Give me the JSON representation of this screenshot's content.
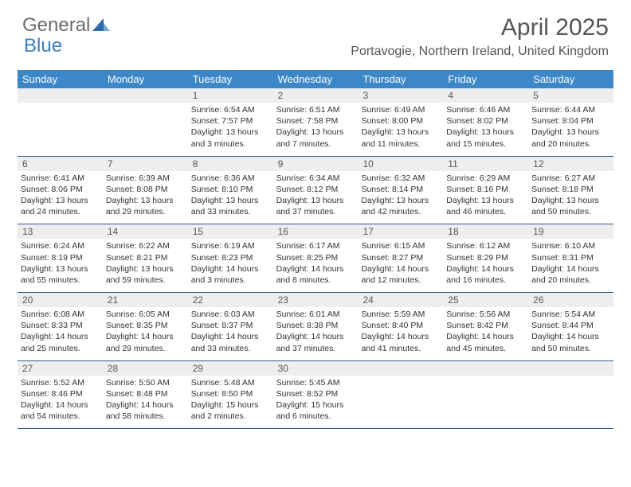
{
  "header": {
    "logo_text_1": "General",
    "logo_text_2": "Blue",
    "month_title": "April 2025",
    "location": "Portavogie, Northern Ireland, United Kingdom"
  },
  "days_of_week": [
    "Sunday",
    "Monday",
    "Tuesday",
    "Wednesday",
    "Thursday",
    "Friday",
    "Saturday"
  ],
  "colors": {
    "header_bar": "#3b87c8",
    "daynum_bg": "#eeeeee",
    "row_border": "#2f5f8f",
    "text": "#333333",
    "logo_gray": "#6b6b6b",
    "logo_blue": "#3b7fc4"
  },
  "weeks": [
    [
      {
        "n": "",
        "sunrise": "",
        "sunset": "",
        "daylight": ""
      },
      {
        "n": "",
        "sunrise": "",
        "sunset": "",
        "daylight": ""
      },
      {
        "n": "1",
        "sunrise": "Sunrise: 6:54 AM",
        "sunset": "Sunset: 7:57 PM",
        "daylight": "Daylight: 13 hours and 3 minutes."
      },
      {
        "n": "2",
        "sunrise": "Sunrise: 6:51 AM",
        "sunset": "Sunset: 7:58 PM",
        "daylight": "Daylight: 13 hours and 7 minutes."
      },
      {
        "n": "3",
        "sunrise": "Sunrise: 6:49 AM",
        "sunset": "Sunset: 8:00 PM",
        "daylight": "Daylight: 13 hours and 11 minutes."
      },
      {
        "n": "4",
        "sunrise": "Sunrise: 6:46 AM",
        "sunset": "Sunset: 8:02 PM",
        "daylight": "Daylight: 13 hours and 15 minutes."
      },
      {
        "n": "5",
        "sunrise": "Sunrise: 6:44 AM",
        "sunset": "Sunset: 8:04 PM",
        "daylight": "Daylight: 13 hours and 20 minutes."
      }
    ],
    [
      {
        "n": "6",
        "sunrise": "Sunrise: 6:41 AM",
        "sunset": "Sunset: 8:06 PM",
        "daylight": "Daylight: 13 hours and 24 minutes."
      },
      {
        "n": "7",
        "sunrise": "Sunrise: 6:39 AM",
        "sunset": "Sunset: 8:08 PM",
        "daylight": "Daylight: 13 hours and 29 minutes."
      },
      {
        "n": "8",
        "sunrise": "Sunrise: 6:36 AM",
        "sunset": "Sunset: 8:10 PM",
        "daylight": "Daylight: 13 hours and 33 minutes."
      },
      {
        "n": "9",
        "sunrise": "Sunrise: 6:34 AM",
        "sunset": "Sunset: 8:12 PM",
        "daylight": "Daylight: 13 hours and 37 minutes."
      },
      {
        "n": "10",
        "sunrise": "Sunrise: 6:32 AM",
        "sunset": "Sunset: 8:14 PM",
        "daylight": "Daylight: 13 hours and 42 minutes."
      },
      {
        "n": "11",
        "sunrise": "Sunrise: 6:29 AM",
        "sunset": "Sunset: 8:16 PM",
        "daylight": "Daylight: 13 hours and 46 minutes."
      },
      {
        "n": "12",
        "sunrise": "Sunrise: 6:27 AM",
        "sunset": "Sunset: 8:18 PM",
        "daylight": "Daylight: 13 hours and 50 minutes."
      }
    ],
    [
      {
        "n": "13",
        "sunrise": "Sunrise: 6:24 AM",
        "sunset": "Sunset: 8:19 PM",
        "daylight": "Daylight: 13 hours and 55 minutes."
      },
      {
        "n": "14",
        "sunrise": "Sunrise: 6:22 AM",
        "sunset": "Sunset: 8:21 PM",
        "daylight": "Daylight: 13 hours and 59 minutes."
      },
      {
        "n": "15",
        "sunrise": "Sunrise: 6:19 AM",
        "sunset": "Sunset: 8:23 PM",
        "daylight": "Daylight: 14 hours and 3 minutes."
      },
      {
        "n": "16",
        "sunrise": "Sunrise: 6:17 AM",
        "sunset": "Sunset: 8:25 PM",
        "daylight": "Daylight: 14 hours and 8 minutes."
      },
      {
        "n": "17",
        "sunrise": "Sunrise: 6:15 AM",
        "sunset": "Sunset: 8:27 PM",
        "daylight": "Daylight: 14 hours and 12 minutes."
      },
      {
        "n": "18",
        "sunrise": "Sunrise: 6:12 AM",
        "sunset": "Sunset: 8:29 PM",
        "daylight": "Daylight: 14 hours and 16 minutes."
      },
      {
        "n": "19",
        "sunrise": "Sunrise: 6:10 AM",
        "sunset": "Sunset: 8:31 PM",
        "daylight": "Daylight: 14 hours and 20 minutes."
      }
    ],
    [
      {
        "n": "20",
        "sunrise": "Sunrise: 6:08 AM",
        "sunset": "Sunset: 8:33 PM",
        "daylight": "Daylight: 14 hours and 25 minutes."
      },
      {
        "n": "21",
        "sunrise": "Sunrise: 6:05 AM",
        "sunset": "Sunset: 8:35 PM",
        "daylight": "Daylight: 14 hours and 29 minutes."
      },
      {
        "n": "22",
        "sunrise": "Sunrise: 6:03 AM",
        "sunset": "Sunset: 8:37 PM",
        "daylight": "Daylight: 14 hours and 33 minutes."
      },
      {
        "n": "23",
        "sunrise": "Sunrise: 6:01 AM",
        "sunset": "Sunset: 8:38 PM",
        "daylight": "Daylight: 14 hours and 37 minutes."
      },
      {
        "n": "24",
        "sunrise": "Sunrise: 5:59 AM",
        "sunset": "Sunset: 8:40 PM",
        "daylight": "Daylight: 14 hours and 41 minutes."
      },
      {
        "n": "25",
        "sunrise": "Sunrise: 5:56 AM",
        "sunset": "Sunset: 8:42 PM",
        "daylight": "Daylight: 14 hours and 45 minutes."
      },
      {
        "n": "26",
        "sunrise": "Sunrise: 5:54 AM",
        "sunset": "Sunset: 8:44 PM",
        "daylight": "Daylight: 14 hours and 50 minutes."
      }
    ],
    [
      {
        "n": "27",
        "sunrise": "Sunrise: 5:52 AM",
        "sunset": "Sunset: 8:46 PM",
        "daylight": "Daylight: 14 hours and 54 minutes."
      },
      {
        "n": "28",
        "sunrise": "Sunrise: 5:50 AM",
        "sunset": "Sunset: 8:48 PM",
        "daylight": "Daylight: 14 hours and 58 minutes."
      },
      {
        "n": "29",
        "sunrise": "Sunrise: 5:48 AM",
        "sunset": "Sunset: 8:50 PM",
        "daylight": "Daylight: 15 hours and 2 minutes."
      },
      {
        "n": "30",
        "sunrise": "Sunrise: 5:45 AM",
        "sunset": "Sunset: 8:52 PM",
        "daylight": "Daylight: 15 hours and 6 minutes."
      },
      {
        "n": "",
        "sunrise": "",
        "sunset": "",
        "daylight": ""
      },
      {
        "n": "",
        "sunrise": "",
        "sunset": "",
        "daylight": ""
      },
      {
        "n": "",
        "sunrise": "",
        "sunset": "",
        "daylight": ""
      }
    ]
  ]
}
